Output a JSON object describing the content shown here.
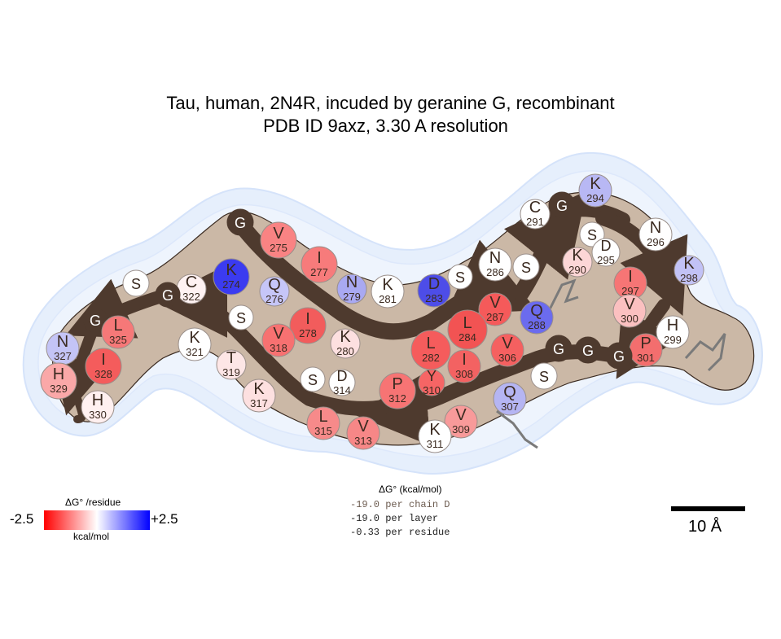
{
  "title": {
    "line1": "Tau, human, 2N4R, incuded by geranine G, recombinant",
    "line2": "PDB ID 9axz, 3.30 A resolution"
  },
  "legend": {
    "title": "ΔG° /residue",
    "min_label": "-2.5",
    "max_label": "+2.5",
    "unit": "kcal/mol",
    "colors": {
      "negative": "#ff0000",
      "neutral": "#ffffff",
      "positive": "#0000ff"
    }
  },
  "energy_summary": {
    "title": "ΔG° (kcal/mol)",
    "lines": [
      "-19.0 per chain D",
      "-19.0 per layer",
      "-0.33 per residue"
    ]
  },
  "scale_bar": {
    "label": "10 Å"
  },
  "colors": {
    "backbone": "#4e3a2e",
    "core_fill": "#cbb8a6",
    "halo": "#dbe8fb",
    "ligand": "#7a7a7a"
  },
  "residues": [
    {
      "letter": "G",
      "num": "",
      "color": "#4e3a2e"
    },
    {
      "letter": "V",
      "num": "275",
      "color": "#f98383"
    },
    {
      "letter": "I",
      "num": "277",
      "color": "#f77b7b"
    },
    {
      "letter": "K",
      "num": "274",
      "color": "#3b3bf0"
    },
    {
      "letter": "Q",
      "num": "276",
      "color": "#c6c6f8"
    },
    {
      "letter": "N",
      "num": "279",
      "color": "#a9a9f2"
    },
    {
      "letter": "K",
      "num": "281",
      "color": "#ffffff"
    },
    {
      "letter": "D",
      "num": "283",
      "color": "#4d4de8"
    },
    {
      "letter": "S",
      "num": "",
      "color": "#ffffff"
    },
    {
      "letter": "N",
      "num": "286",
      "color": "#ffffff"
    },
    {
      "letter": "S",
      "num": "",
      "color": "#ffffff"
    },
    {
      "letter": "C",
      "num": "291",
      "color": "#ffffff"
    },
    {
      "letter": "G",
      "num": "",
      "color": "#4e3a2e"
    },
    {
      "letter": "K",
      "num": "294",
      "color": "#b8b8f4"
    },
    {
      "letter": "N",
      "num": "296",
      "color": "#ffffff"
    },
    {
      "letter": "S",
      "num": "",
      "color": "#ffffff"
    },
    {
      "letter": "D",
      "num": "295",
      "color": "#ffffff"
    },
    {
      "letter": "K",
      "num": "290",
      "color": "#fcd6d6"
    },
    {
      "letter": "K",
      "num": "298",
      "color": "#c2c2f6"
    },
    {
      "letter": "I",
      "num": "297",
      "color": "#f67575"
    },
    {
      "letter": "V",
      "num": "300",
      "color": "#fbc0c0"
    },
    {
      "letter": "H",
      "num": "299",
      "color": "#ffffff"
    },
    {
      "letter": "P",
      "num": "301",
      "color": "#f36e6e"
    },
    {
      "letter": "G",
      "num": "",
      "color": "#4e3a2e"
    },
    {
      "letter": "G",
      "num": "",
      "color": "#4e3a2e"
    },
    {
      "letter": "G",
      "num": "",
      "color": "#4e3a2e"
    },
    {
      "letter": "Q",
      "num": "288",
      "color": "#6b6bee"
    },
    {
      "letter": "V",
      "num": "287",
      "color": "#f55a5a"
    },
    {
      "letter": "V",
      "num": "306",
      "color": "#f56060"
    },
    {
      "letter": "L",
      "num": "284",
      "color": "#f25353"
    },
    {
      "letter": "I",
      "num": "308",
      "color": "#f36262"
    },
    {
      "letter": "S",
      "num": "",
      "color": "#ffffff"
    },
    {
      "letter": "Q",
      "num": "307",
      "color": "#b5b5f3"
    },
    {
      "letter": "V",
      "num": "309",
      "color": "#f89a9a"
    },
    {
      "letter": "K",
      "num": "311",
      "color": "#ffffff"
    },
    {
      "letter": "L",
      "num": "282",
      "color": "#f55c5c"
    },
    {
      "letter": "Y",
      "num": "310",
      "color": "#f66565"
    },
    {
      "letter": "P",
      "num": "312",
      "color": "#f77474"
    },
    {
      "letter": "V",
      "num": "313",
      "color": "#f78787"
    },
    {
      "letter": "L",
      "num": "315",
      "color": "#f78a8a"
    },
    {
      "letter": "D",
      "num": "314",
      "color": "#ffffff"
    },
    {
      "letter": "S",
      "num": "",
      "color": "#ffffff"
    },
    {
      "letter": "I",
      "num": "278",
      "color": "#f25c5c"
    },
    {
      "letter": "K",
      "num": "280",
      "color": "#fde0e0"
    },
    {
      "letter": "V",
      "num": "318",
      "color": "#f77171"
    },
    {
      "letter": "S",
      "num": "",
      "color": "#ffffff"
    },
    {
      "letter": "C",
      "num": "322",
      "color": "#fff2f2"
    },
    {
      "letter": "K",
      "num": "321",
      "color": "#ffffff"
    },
    {
      "letter": "T",
      "num": "319",
      "color": "#fde6e6"
    },
    {
      "letter": "K",
      "num": "317",
      "color": "#fde0e0"
    },
    {
      "letter": "G",
      "num": "",
      "color": "#4e3a2e"
    },
    {
      "letter": "S",
      "num": "",
      "color": "#ffffff"
    },
    {
      "letter": "G",
      "num": "",
      "color": "#4e3a2e"
    },
    {
      "letter": "L",
      "num": "325",
      "color": "#f67878"
    },
    {
      "letter": "N",
      "num": "327",
      "color": "#c4c4f6"
    },
    {
      "letter": "I",
      "num": "328",
      "color": "#f45c5c"
    },
    {
      "letter": "H",
      "num": "329",
      "color": "#faa8a8"
    },
    {
      "letter": "H",
      "num": "330",
      "color": "#fff0f0"
    }
  ]
}
